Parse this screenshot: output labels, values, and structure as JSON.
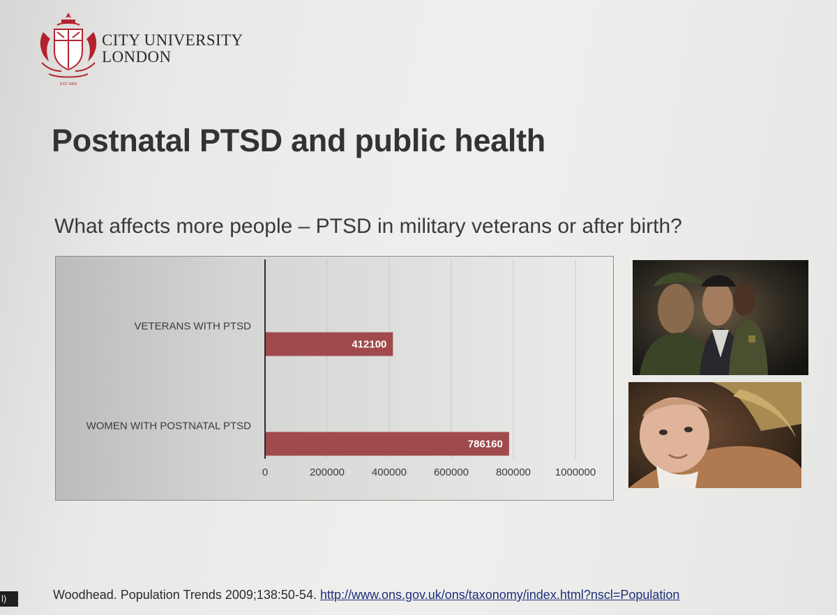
{
  "brand": {
    "line1": "CITY UNIVERSITY",
    "line2": "LONDON",
    "est": "EST 1894"
  },
  "slide": {
    "title": "Postnatal PTSD and public health",
    "subtitle": "What affects more people – PTSD in military veterans or after birth?"
  },
  "chart_data": {
    "type": "bar",
    "orientation": "horizontal",
    "categories": [
      "VETERANS WITH PTSD",
      "WOMEN WITH POSTNATAL PTSD"
    ],
    "values": [
      412100,
      786160
    ],
    "data_labels": [
      "412100",
      "786160"
    ],
    "xlim": [
      0,
      1000000
    ],
    "xticks": [
      "0",
      "200000",
      "400000",
      "600000",
      "800000",
      "1000000"
    ],
    "grid": "vertical",
    "bar_color": "#a04a4c",
    "title": "",
    "xlabel": "",
    "ylabel": ""
  },
  "footer": {
    "citation": "Woodhead. Population Trends 2009;138:50-54. ",
    "link": "http://www.ons.gov.uk/ons/taxonomy/index.html?nscl=Population"
  },
  "edge_label": "l)",
  "colors": {
    "crest": "#b3222e",
    "title": "#333333",
    "link": "#1d2f7a"
  }
}
